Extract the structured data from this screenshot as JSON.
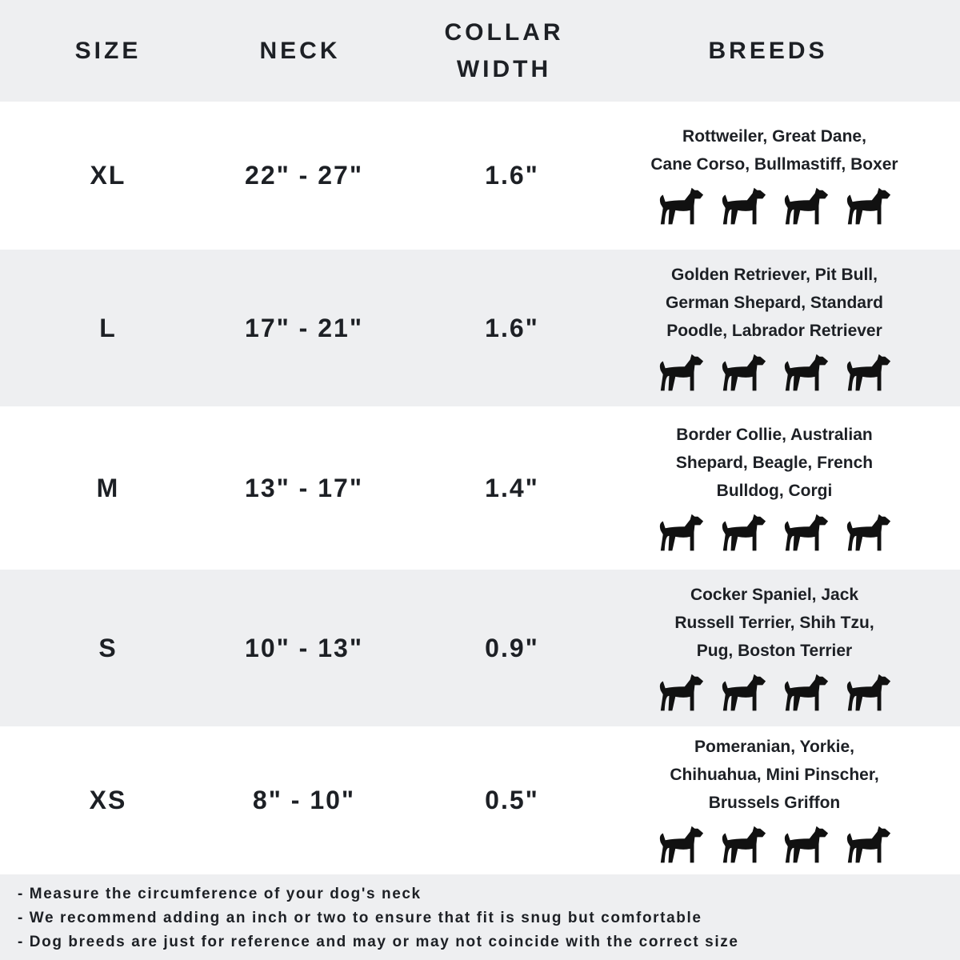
{
  "header": {
    "size": "SIZE",
    "neck": "NECK",
    "collar_line1": "COLLAR",
    "collar_line2": "WIDTH",
    "breeds": "BREEDS"
  },
  "rows": [
    {
      "size": "XL",
      "neck": "22\" - 27\"",
      "collar": "1.6\"",
      "breeds": [
        "Rottweiler, Great Dane,",
        "Cane Corso, Bullmastiff, Boxer"
      ],
      "icons": [
        "rottweiler-icon",
        "great-dane-icon",
        "doberman-icon",
        "bullmastiff-icon"
      ]
    },
    {
      "size": "L",
      "neck": "17\" - 21\"",
      "collar": "1.6\"",
      "breeds": [
        "Golden Retriever, Pit Bull,",
        "German Shepard, Standard",
        "Poodle, Labrador Retriever"
      ],
      "icons": [
        "golden-retriever-icon",
        "labrador-icon",
        "poodle-icon",
        "german-shepherd-icon"
      ]
    },
    {
      "size": "M",
      "neck": "13\" - 17\"",
      "collar": "1.4\"",
      "breeds": [
        "Border Collie, Australian",
        "Shepard, Beagle, French",
        "Bulldog, Corgi"
      ],
      "icons": [
        "border-collie-icon",
        "beagle-icon",
        "french-bulldog-icon",
        "corgi-icon"
      ]
    },
    {
      "size": "S",
      "neck": "10\" - 13\"",
      "collar": "0.9\"",
      "breeds": [
        "Cocker Spaniel, Jack",
        "Russell Terrier, Shih Tzu,",
        "Pug, Boston Terrier"
      ],
      "icons": [
        "cocker-spaniel-icon",
        "jack-russell-icon",
        "shih-tzu-icon",
        "pug-icon"
      ]
    },
    {
      "size": "XS",
      "neck": "8\" - 10\"",
      "collar": "0.5\"",
      "breeds": [
        "Pomeranian, Yorkie,",
        "Chihuahua, Mini Pinscher,",
        "Brussels Griffon"
      ],
      "icons": [
        "pomeranian-icon",
        "yorkie-icon",
        "chihuahua-icon",
        "mini-pinscher-icon"
      ]
    }
  ],
  "notes": [
    "- Measure the circumference of your dog's neck",
    "- We recommend adding an inch or two to ensure that fit is snug but comfortable",
    "- Dog breeds are just for reference and may or may not coincide with the correct size"
  ],
  "colors": {
    "band": "#eeeff1",
    "text": "#1d2025"
  }
}
